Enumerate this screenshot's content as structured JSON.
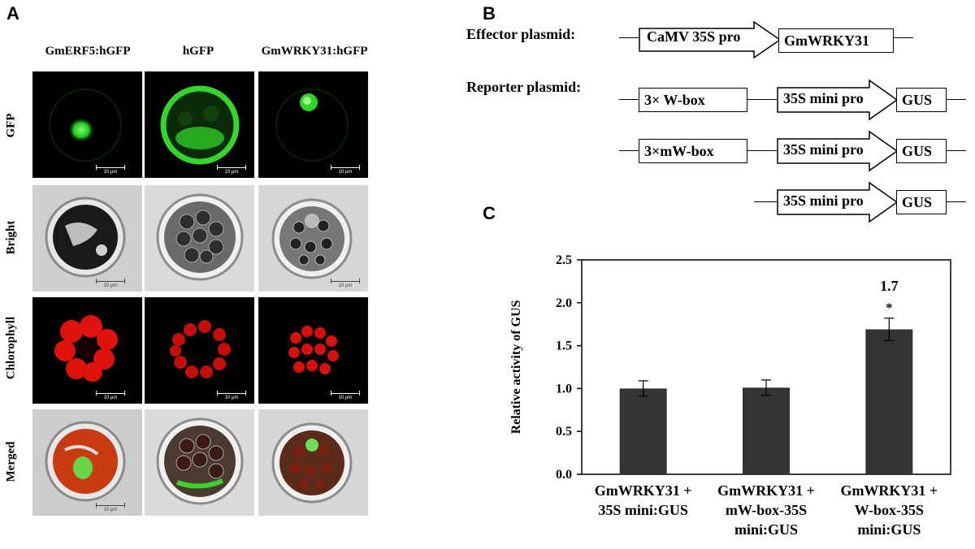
{
  "panel_a": {
    "letter": "A",
    "columns": [
      "GmERF5:hGFP",
      "hGFP",
      "GmWRKY31:hGFP"
    ],
    "rows": [
      "GFP",
      "Bright",
      "Chlorophyll",
      "Merged"
    ],
    "scale_bar_label": "10 μm"
  },
  "panel_b": {
    "letter": "B",
    "effector_label": "Effector plasmid:",
    "reporter_label": "Reporter plasmid:",
    "effector": {
      "promoter": "CaMV 35S pro",
      "gene": "GmWRKY31"
    },
    "reporters": [
      {
        "element": "3× W-box",
        "promoter": "35S mini pro",
        "gene": "GUS"
      },
      {
        "element": "3×mW-box",
        "promoter": "35S mini pro",
        "gene": "GUS"
      },
      {
        "element": "",
        "promoter": "35S mini pro",
        "gene": "GUS"
      }
    ]
  },
  "panel_c": {
    "letter": "C",
    "bar_color": "#333333"
  },
  "chart_data": {
    "type": "bar",
    "categories": [
      [
        "GmWRKY31 +",
        "35S mini:GUS"
      ],
      [
        "GmWRKY31 +",
        "mW-box-35S",
        "mini:GUS"
      ],
      [
        "GmWRKY31 +",
        "W-box-35S",
        "mini:GUS"
      ]
    ],
    "values": [
      1.0,
      1.01,
      1.69
    ],
    "errors": [
      0.09,
      0.09,
      0.13
    ],
    "annotations": [
      "",
      "",
      "*"
    ],
    "value_label": "1.7",
    "ylabel": "Relative activity of GUS",
    "xlabel": "",
    "ylim": [
      0,
      2.5
    ],
    "yticks": [
      "0.0",
      "0.5",
      "1.0",
      "1.5",
      "2.0",
      "2.5"
    ]
  }
}
